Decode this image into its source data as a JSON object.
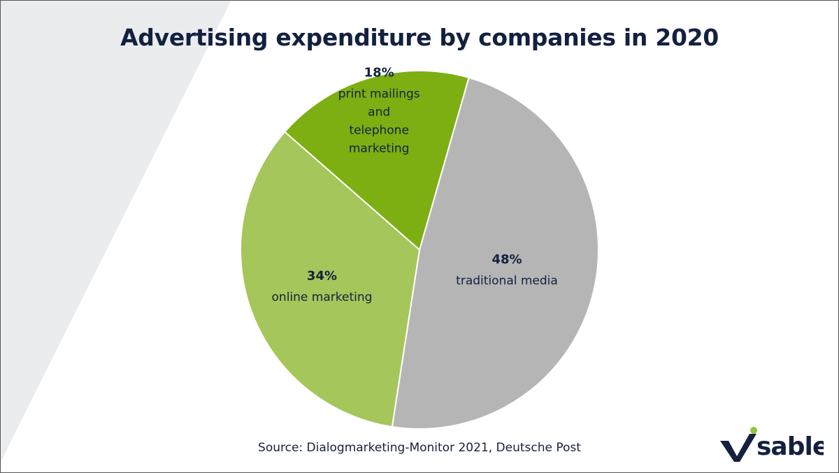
{
  "chart_data": {
    "type": "pie",
    "title": "Advertising expenditure by companies in 2020",
    "slices": [
      {
        "label": "traditional media",
        "value": 48,
        "value_label": "48%",
        "color": "#b5b5b5"
      },
      {
        "label": "online marketing",
        "value": 34,
        "value_label": "34%",
        "color": "#a5c65a"
      },
      {
        "label": "print mailings and telephone marketing",
        "label_lines": [
          "print mailings",
          "and",
          "telephone",
          "marketing"
        ],
        "value": 18,
        "value_label": "18%",
        "color": "#7dae12"
      }
    ],
    "start_angle_deg": 16,
    "direction": "clockwise",
    "source": "Source: Dialogmarketing-Monitor 2021, Deutsche Post"
  },
  "logo": {
    "text": "visable",
    "text_color": "#13213f",
    "dot_color": "#8dc63f"
  },
  "colors": {
    "background_shape": "#ebecee",
    "text": "#13213f"
  }
}
